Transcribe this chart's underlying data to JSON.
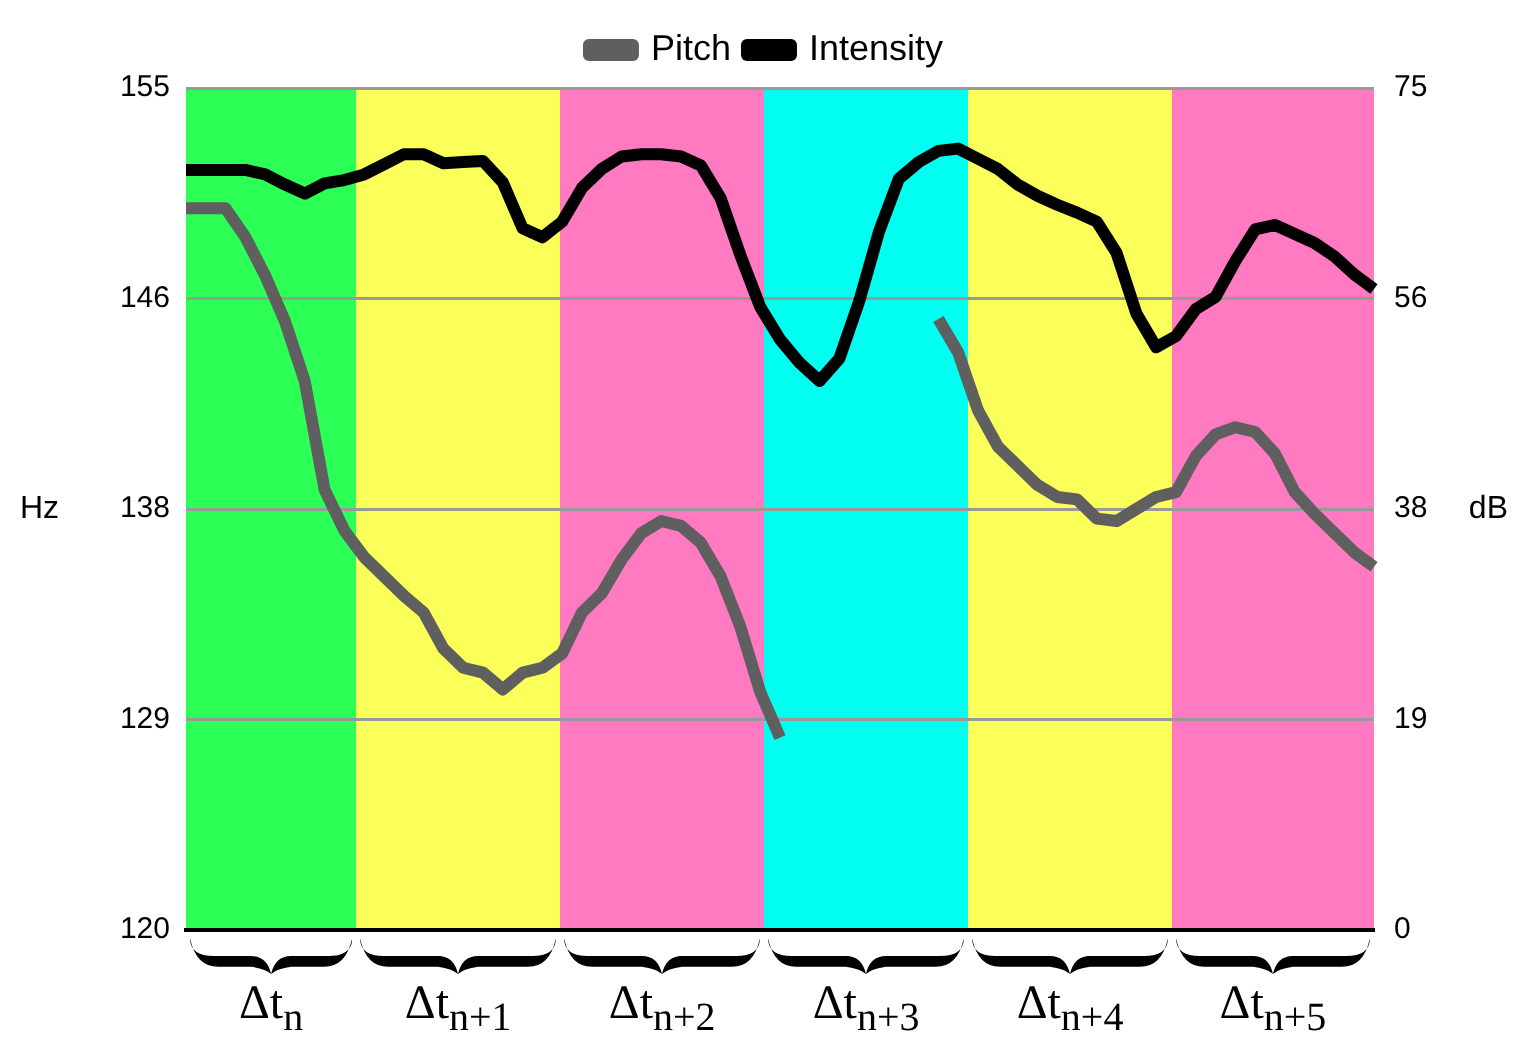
{
  "chart_data": {
    "type": "line",
    "ylabel": "Hz",
    "y2label": "dB",
    "categories": [
      null,
      null,
      null,
      null,
      null,
      null,
      null,
      null,
      null,
      null,
      null,
      null,
      null,
      null,
      null,
      null,
      null,
      null,
      null,
      null,
      null,
      null,
      null,
      null,
      null,
      null,
      null,
      null,
      null,
      null,
      null,
      null,
      null,
      null,
      null,
      null,
      null,
      null,
      null,
      null,
      null,
      null,
      null,
      null,
      null,
      null,
      null,
      null,
      null,
      null,
      null,
      null,
      null,
      null,
      null,
      null,
      null,
      null,
      null,
      null,
      null
    ],
    "ylim": [
      120,
      155
    ],
    "yticks": [
      120,
      {
        "value": 128.75,
        "label": "129"
      },
      {
        "value": 137.5,
        "label": "138"
      },
      {
        "value": 146.25,
        "label": "146"
      },
      155
    ],
    "y2lim": [
      0,
      75
    ],
    "y2ticks": [
      0,
      {
        "value": 18.75,
        "label": "19"
      },
      {
        "value": 37.5,
        "label": "38"
      },
      {
        "value": 56.25,
        "label": "56"
      },
      75
    ],
    "grid": "y",
    "legend": "top",
    "marker": "none",
    "line_style": "solid",
    "tick_labels": "y",
    "series": [
      {
        "name": "Pitch",
        "color": "#5f5f5f",
        "values": [
          150,
          150,
          150,
          148.8,
          147.2,
          145.3,
          142.8,
          138.3,
          136.6,
          135.5,
          134.7,
          133.9,
          133.2,
          131.7,
          130.9,
          130.7,
          130.0,
          130.7,
          130.9,
          131.5,
          133.2,
          134.0,
          135.4,
          136.5,
          137.0,
          136.8,
          136.1,
          134.7,
          132.6,
          129.9,
          128.0,
          null,
          null,
          null,
          null,
          null,
          null,
          null,
          145.4,
          144.0,
          141.6,
          140.1,
          139.3,
          138.5,
          138.0,
          137.9,
          137.1,
          137.0,
          137.5,
          138.0,
          138.2,
          139.7,
          140.6,
          140.9,
          140.7,
          139.8,
          138.2,
          137.3,
          136.5,
          135.7,
          135.1
        ]
      },
      {
        "name": "Intensity",
        "color": "#000000",
        "axis": "y2",
        "values": [
          67.7,
          67.7,
          67.7,
          67.7,
          67.3,
          66.4,
          65.6,
          66.5,
          66.8,
          67.3,
          68.2,
          69.1,
          69.1,
          68.3,
          68.4,
          68.5,
          66.6,
          62.5,
          61.7,
          63.1,
          66.1,
          67.8,
          68.9,
          69.1,
          69.1,
          68.9,
          68.1,
          65.2,
          60.1,
          55.5,
          52.6,
          50.5,
          48.9,
          50.9,
          56.0,
          62.2,
          66.9,
          68.4,
          69.4,
          69.6,
          68.7,
          67.8,
          66.4,
          65.4,
          64.6,
          63.9,
          63.1,
          60.3,
          54.9,
          51.9,
          52.9,
          55.3,
          56.4,
          59.6,
          62.4,
          62.8,
          62.0,
          61.2,
          60.0,
          58.4,
          57.1
        ]
      }
    ],
    "annotations": [
      "Δt$_{n}$",
      "Δt$_{n+1}$",
      "Δt$_{n+2}$",
      "Δt$_{n+3}$",
      "Δt$_{n+4}$",
      "Δt$_{n+5}$"
    ]
  }
}
